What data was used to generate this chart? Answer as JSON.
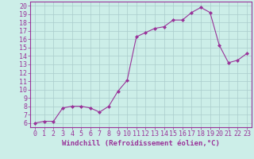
{
  "x": [
    0,
    1,
    2,
    3,
    4,
    5,
    6,
    7,
    8,
    9,
    10,
    11,
    12,
    13,
    14,
    15,
    16,
    17,
    18,
    19,
    20,
    21,
    22,
    23
  ],
  "y": [
    6.0,
    6.2,
    6.2,
    7.8,
    8.0,
    8.0,
    7.8,
    7.3,
    8.0,
    9.8,
    11.1,
    16.3,
    16.8,
    17.3,
    17.5,
    18.3,
    18.3,
    19.2,
    19.8,
    19.2,
    15.3,
    13.2,
    13.5,
    14.3
  ],
  "line_color": "#993399",
  "marker": "D",
  "marker_size": 2,
  "bg_color": "#cceee8",
  "grid_color": "#aacccc",
  "xlabel": "Windchill (Refroidissement éolien,°C)",
  "xlim": [
    -0.5,
    23.5
  ],
  "ylim": [
    5.5,
    20.5
  ],
  "yticks": [
    6,
    7,
    8,
    9,
    10,
    11,
    12,
    13,
    14,
    15,
    16,
    17,
    18,
    19,
    20
  ],
  "xticks": [
    0,
    1,
    2,
    3,
    4,
    5,
    6,
    7,
    8,
    9,
    10,
    11,
    12,
    13,
    14,
    15,
    16,
    17,
    18,
    19,
    20,
    21,
    22,
    23
  ],
  "tick_color": "#993399",
  "label_fontsize": 6.5,
  "tick_fontsize": 6
}
